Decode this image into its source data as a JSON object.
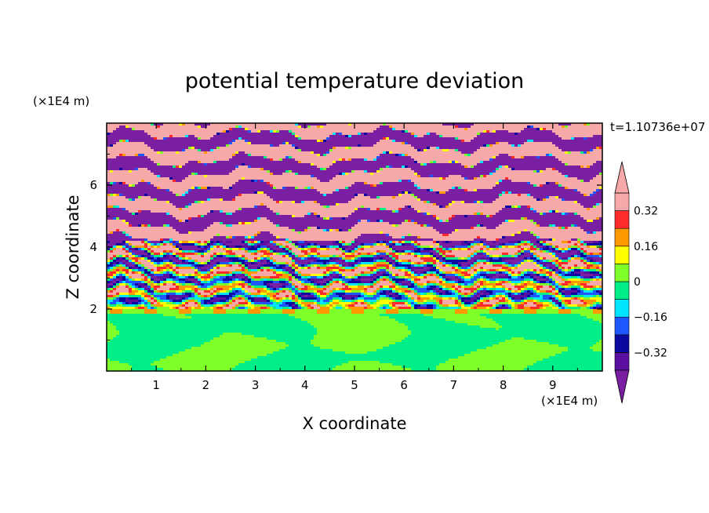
{
  "chart_data": {
    "type": "heatmap",
    "title": "potential temperature deviation",
    "xlabel": "X coordinate",
    "ylabel": "Z coordinate",
    "x_unit": "(×1E4 m)",
    "y_unit": "(×1E4 m)",
    "time_label": "t=1.10736e+07",
    "xlim": [
      0,
      10
    ],
    "ylim": [
      0,
      8
    ],
    "x_ticks": [
      1,
      2,
      3,
      4,
      5,
      6,
      7,
      8,
      9
    ],
    "y_ticks": [
      2,
      4,
      6
    ],
    "colorbar": {
      "levels": [
        -0.4,
        -0.32,
        -0.24,
        -0.16,
        -0.08,
        0,
        0.08,
        0.16,
        0.24,
        0.32,
        0.4
      ],
      "labels": [
        "0.32",
        "0.16",
        "0",
        "−0.16",
        "−0.32"
      ],
      "label_values": [
        0.32,
        0.16,
        0,
        -0.16,
        -0.32
      ],
      "colors": [
        "#7b1fa2",
        "#5a0fa0",
        "#0a0aa0",
        "#1e56ff",
        "#00e5ff",
        "#00ee88",
        "#7fff2a",
        "#ffff00",
        "#ff9900",
        "#ff2a2a",
        "#f7a8a8"
      ],
      "extend": "both"
    },
    "description_values": {
      "lower_layer_z_range": [
        0,
        2
      ],
      "lower_layer_values": [
        -0.08,
        0.08
      ],
      "upper_band_z_range": [
        2,
        8
      ],
      "upper_band_values": [
        -0.4,
        0.4
      ]
    }
  }
}
